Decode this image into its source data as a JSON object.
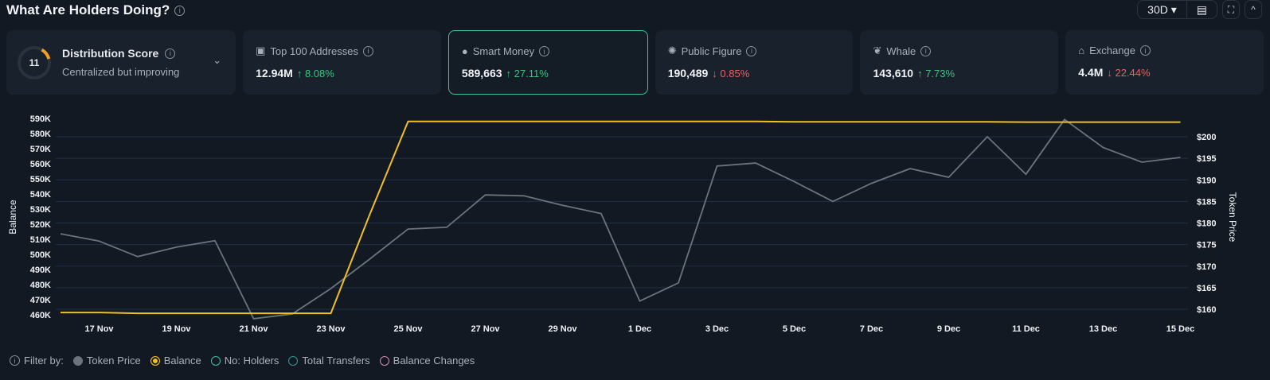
{
  "header": {
    "title": "What Are Holders Doing?",
    "range": "30D"
  },
  "cards": [
    {
      "label": "Distribution Score",
      "score": "11",
      "subtitle": "Centralized but improving",
      "score_fraction": 0.11
    },
    {
      "label": "Top 100 Addresses",
      "value": "12.94M",
      "change": "↑ 8.08%",
      "dir": "up",
      "icon": "money-icon"
    },
    {
      "label": "Smart Money",
      "value": "589,663",
      "change": "↑ 27.11%",
      "dir": "up",
      "icon": "sunglasses-icon"
    },
    {
      "label": "Public Figure",
      "value": "190,489",
      "change": "↓ 0.85%",
      "dir": "down",
      "icon": "person-icon"
    },
    {
      "label": "Whale",
      "value": "143,610",
      "change": "↑ 7.73%",
      "dir": "up",
      "icon": "whale-icon"
    },
    {
      "label": "Exchange",
      "value": "4.4M",
      "change": "↓ 22.44%",
      "dir": "down",
      "icon": "bank-icon"
    }
  ],
  "legend": {
    "title": "Filter by:",
    "items": [
      {
        "label": "Token Price",
        "color": "#6b737d",
        "filled": true
      },
      {
        "label": "Balance",
        "color": "#f0c020",
        "filled": true
      },
      {
        "label": "No: Holders",
        "color": "#3fbfa0",
        "filled": false
      },
      {
        "label": "Total Transfers",
        "color": "#2a9a90",
        "filled": false
      },
      {
        "label": "Balance Changes",
        "color": "#d58ab0",
        "filled": false
      }
    ]
  },
  "chart_data": {
    "type": "line",
    "ylabel": "Balance",
    "y2label": "Token Price",
    "ylim": [
      460000,
      590000
    ],
    "y2lim": [
      160,
      200
    ],
    "yticks": [
      "590K",
      "580K",
      "570K",
      "560K",
      "550K",
      "540K",
      "530K",
      "520K",
      "510K",
      "500K",
      "490K",
      "480K",
      "470K",
      "460K"
    ],
    "y2ticks": [
      "$200",
      "$195",
      "$190",
      "$185",
      "$180",
      "$175",
      "$170",
      "$165",
      "$160"
    ],
    "xticks": [
      "17 Nov",
      "19 Nov",
      "21 Nov",
      "23 Nov",
      "25 Nov",
      "27 Nov",
      "29 Nov",
      "1 Dec",
      "3 Dec",
      "5 Dec",
      "7 Dec",
      "9 Dec",
      "11 Dec",
      "13 Dec",
      "15 Dec"
    ],
    "x": [
      "16 Nov",
      "17 Nov",
      "18 Nov",
      "19 Nov",
      "20 Nov",
      "21 Nov",
      "22 Nov",
      "23 Nov",
      "24 Nov",
      "25 Nov",
      "26 Nov",
      "27 Nov",
      "28 Nov",
      "29 Nov",
      "30 Nov",
      "1 Dec",
      "2 Dec",
      "3 Dec",
      "4 Dec",
      "5 Dec",
      "6 Dec",
      "7 Dec",
      "8 Dec",
      "9 Dec",
      "10 Dec",
      "11 Dec",
      "12 Dec",
      "13 Dec",
      "14 Dec",
      "15 Dec"
    ],
    "series": [
      {
        "name": "Token Price",
        "axis": "right",
        "color": "#6b737d",
        "values": [
          177.5,
          175.8,
          172.2,
          174.4,
          175.9,
          157.8,
          158.9,
          164.8,
          171.6,
          178.6,
          179.0,
          186.5,
          186.3,
          184.1,
          182.2,
          161.9,
          166.1,
          193.2,
          193.9,
          189.6,
          185.0,
          189.2,
          192.6,
          190.6,
          200.0,
          191.3,
          204.0,
          197.5,
          194.1,
          195.2
        ]
      },
      {
        "name": "Balance",
        "axis": "left",
        "color": "#f0c020",
        "values": [
          461500,
          461500,
          461000,
          461000,
          461000,
          461000,
          461000,
          461000,
          526000,
          588000,
          588000,
          588000,
          588000,
          588000,
          588000,
          588000,
          588000,
          588000,
          588000,
          587800,
          587800,
          587800,
          587800,
          587800,
          587800,
          587600,
          587600,
          587600,
          587600,
          587600
        ]
      }
    ]
  }
}
